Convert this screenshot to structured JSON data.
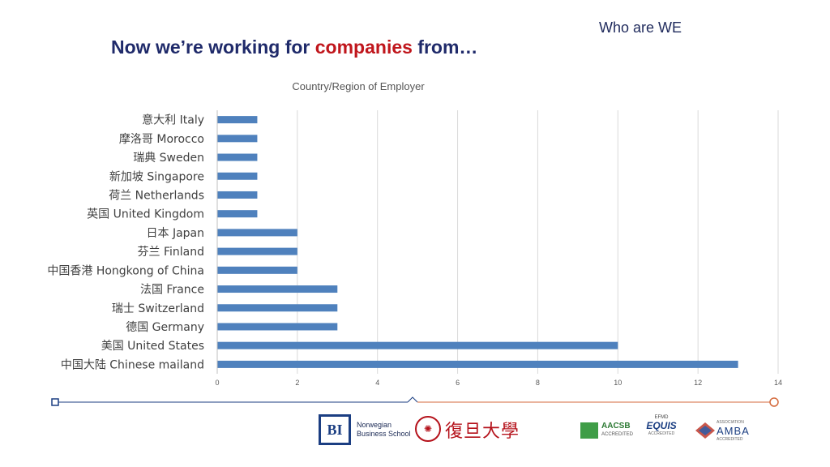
{
  "header": {
    "section_label": "Who are WE",
    "headline_part1": "Now we’re working for ",
    "headline_accent": "companies",
    "headline_part2": " from…"
  },
  "colors": {
    "bar": "#4f81bd",
    "headline": "#1f2a6a",
    "accent": "#c0161c",
    "timeline_left": "#1b3e82",
    "timeline_right": "#d46a3c"
  },
  "chart_data": {
    "type": "bar",
    "orientation": "horizontal",
    "title": "Country/Region of Employer",
    "categories": [
      "意大利 Italy",
      "摩洛哥 Morocco",
      "瑞典 Sweden",
      "新加坡 Singapore",
      "荷兰 Netherlands",
      "英国 United Kingdom",
      "日本 Japan",
      "芬兰 Finland",
      "中国香港 Hongkong of China",
      "法国 France",
      "瑞士 Switzerland",
      "德国 Germany",
      "美国 United States",
      "中国大陆 Chinese mailand"
    ],
    "values": [
      1,
      1,
      1,
      1,
      1,
      1,
      2,
      2,
      2,
      3,
      3,
      3,
      10,
      13
    ],
    "xlim": [
      0,
      14
    ],
    "xticks": [
      0,
      2,
      4,
      6,
      8,
      10,
      12,
      14
    ],
    "grid": "vertical"
  },
  "logos": {
    "bi_mark": "BI",
    "bi_name_line1": "Norwegian",
    "bi_name_line2": "Business School",
    "fudan_name": "復旦大學",
    "aacsb_name": "AACSB",
    "aacsb_sub": "ACCREDITED",
    "equis_top": "EFMD",
    "equis_name": "EQUIS",
    "equis_sub": "ACCREDITED",
    "amba_name": "AMBA",
    "amba_top": "ASSOCIATION",
    "amba_sub": "ACCREDITED"
  }
}
